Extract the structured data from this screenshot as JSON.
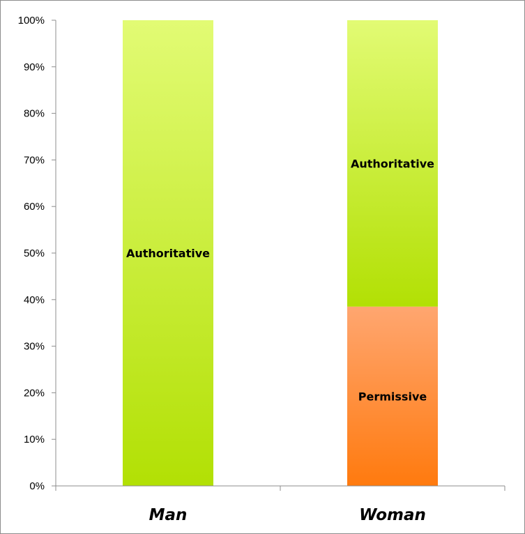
{
  "chart_data": {
    "type": "bar",
    "stacked": true,
    "percent": true,
    "categories": [
      "Man",
      "Woman"
    ],
    "series": [
      {
        "values": [
          0,
          38.5
        ],
        "segment_label": "Permissive",
        "color_top": "#ffa670",
        "color_bottom": "#ff7a0e"
      },
      {
        "values": [
          100,
          61.5
        ],
        "segment_label": "Authoritative",
        "color_top": "#e2fb74",
        "color_bottom": "#b2e004"
      }
    ],
    "ylim": [
      0,
      100
    ],
    "yticks": [
      "0%",
      "10%",
      "20%",
      "30%",
      "40%",
      "50%",
      "60%",
      "70%",
      "80%",
      "90%",
      "100%"
    ],
    "grid": false,
    "legend": "none",
    "title": "",
    "xlabel": "",
    "ylabel": ""
  }
}
